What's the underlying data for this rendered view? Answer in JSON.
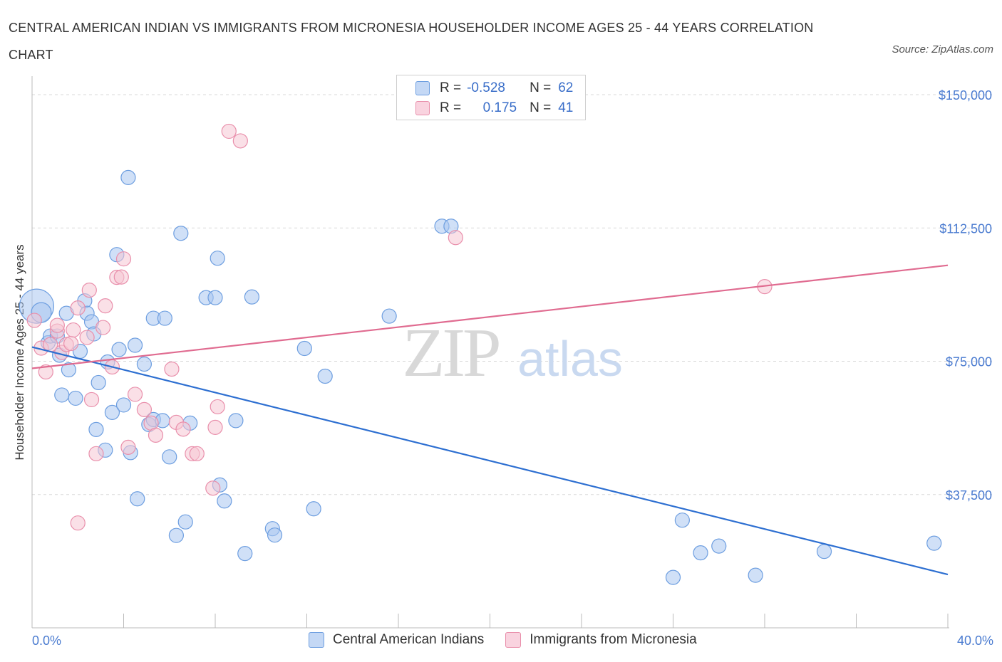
{
  "title": "CENTRAL AMERICAN INDIAN VS IMMIGRANTS FROM MICRONESIA HOUSEHOLDER INCOME AGES 25 - 44 YEARS CORRELATION CHART",
  "source": "Source: ZipAtlas.com",
  "watermark": {
    "zip": "ZIP",
    "atlas": "atlas"
  },
  "legend": {
    "rows": [
      {
        "r_label": "R =",
        "r_value": "-0.528",
        "n_label": "N =",
        "n_value": "62",
        "color": "#a9c6f0"
      },
      {
        "r_label": "R =",
        "r_value": "0.175",
        "n_label": "N =",
        "n_value": "41",
        "color": "#f5b8cb"
      }
    ]
  },
  "x_axis": {
    "min_label": "0.0%",
    "max_label": "40.0%"
  },
  "bottom_legend": [
    {
      "label": "Central American Indians",
      "color": "#a9c6f0",
      "border": "#6d9ee0"
    },
    {
      "label": "Immigrants from Micronesia",
      "color": "#f5c6d4",
      "border": "#e98fab"
    }
  ],
  "chart_data": {
    "type": "scatter",
    "ylabel": "Householder Income Ages 25 - 44 years",
    "xlim": [
      0,
      40
    ],
    "ylim": [
      0,
      150000
    ],
    "y_ticks": [
      {
        "value": 150000,
        "label": "$150,000"
      },
      {
        "value": 112500,
        "label": "$112,500"
      },
      {
        "value": 75000,
        "label": "$75,000"
      },
      {
        "value": 37500,
        "label": "$37,500"
      }
    ],
    "grid": true,
    "series": [
      {
        "name": "Central American Indians",
        "color": "#6d9ee0",
        "fill": "#a9c6f0",
        "trend": {
          "x": [
            0,
            40
          ],
          "y": [
            79000,
            15000
          ],
          "color": "#2d6fd1"
        },
        "points": [
          [
            0.2,
            90500,
            24
          ],
          [
            0.4,
            88700,
            14
          ],
          [
            0.7,
            80200,
            10
          ],
          [
            0.8,
            82100,
            10
          ],
          [
            1.1,
            82100,
            10
          ],
          [
            1.2,
            76700,
            10
          ],
          [
            1.3,
            65500,
            10
          ],
          [
            1.5,
            88500,
            10
          ],
          [
            1.6,
            72600,
            10
          ],
          [
            1.9,
            64600,
            10
          ],
          [
            2.1,
            77800,
            10
          ],
          [
            2.3,
            92000,
            10
          ],
          [
            2.4,
            88500,
            10
          ],
          [
            2.6,
            86100,
            10
          ],
          [
            2.7,
            82700,
            10
          ],
          [
            2.8,
            55800,
            10
          ],
          [
            2.9,
            69000,
            10
          ],
          [
            3.2,
            50000,
            10
          ],
          [
            3.3,
            74800,
            10
          ],
          [
            3.5,
            60600,
            10
          ],
          [
            3.7,
            105000,
            10
          ],
          [
            3.8,
            78300,
            10
          ],
          [
            4.0,
            62700,
            10
          ],
          [
            4.2,
            126700,
            10
          ],
          [
            4.3,
            49300,
            10
          ],
          [
            4.5,
            79500,
            10
          ],
          [
            4.6,
            36300,
            10
          ],
          [
            4.9,
            74200,
            10
          ],
          [
            5.1,
            57200,
            10
          ],
          [
            5.3,
            58600,
            10
          ],
          [
            5.3,
            87100,
            10
          ],
          [
            5.7,
            58300,
            10
          ],
          [
            5.8,
            87100,
            10
          ],
          [
            6.0,
            48100,
            10
          ],
          [
            6.3,
            26000,
            10
          ],
          [
            6.5,
            111000,
            10
          ],
          [
            6.7,
            29800,
            10
          ],
          [
            6.9,
            57600,
            10
          ],
          [
            7.6,
            92900,
            10
          ],
          [
            8.0,
            92900,
            10
          ],
          [
            8.1,
            104000,
            10
          ],
          [
            8.2,
            40200,
            10
          ],
          [
            8.4,
            35700,
            10
          ],
          [
            8.9,
            58300,
            10
          ],
          [
            9.3,
            20900,
            10
          ],
          [
            9.6,
            93100,
            10
          ],
          [
            10.5,
            27900,
            10
          ],
          [
            10.6,
            26100,
            10
          ],
          [
            11.9,
            78600,
            10
          ],
          [
            12.3,
            33500,
            10
          ],
          [
            12.8,
            70800,
            10
          ],
          [
            15.6,
            87700,
            10
          ],
          [
            17.9,
            113000,
            10
          ],
          [
            18.3,
            113000,
            10
          ],
          [
            28.0,
            14200,
            10
          ],
          [
            28.4,
            30300,
            10
          ],
          [
            29.2,
            21100,
            10
          ],
          [
            30.0,
            23000,
            10
          ],
          [
            31.6,
            14800,
            10
          ],
          [
            34.6,
            21500,
            10
          ],
          [
            39.4,
            23800,
            10
          ]
        ]
      },
      {
        "name": "Immigrants from Micronesia",
        "color": "#e98fab",
        "fill": "#f5c6d4",
        "trend": {
          "x": [
            0,
            40
          ],
          "y": [
            73000,
            102000
          ],
          "color": "#e06b90"
        },
        "points": [
          [
            0.1,
            86500,
            10
          ],
          [
            0.4,
            78700,
            10
          ],
          [
            0.6,
            72000,
            10
          ],
          [
            0.8,
            79700,
            10
          ],
          [
            1.1,
            83500,
            10
          ],
          [
            1.1,
            85100,
            10
          ],
          [
            1.3,
            77500,
            10
          ],
          [
            1.5,
            79700,
            10
          ],
          [
            1.7,
            80000,
            10
          ],
          [
            1.8,
            83800,
            10
          ],
          [
            2.0,
            90000,
            10
          ],
          [
            2.0,
            29500,
            10
          ],
          [
            2.4,
            81700,
            10
          ],
          [
            2.5,
            95000,
            10
          ],
          [
            2.6,
            64200,
            10
          ],
          [
            2.8,
            49000,
            10
          ],
          [
            3.1,
            84500,
            10
          ],
          [
            3.2,
            90600,
            10
          ],
          [
            3.5,
            73400,
            10
          ],
          [
            3.7,
            98600,
            10
          ],
          [
            3.9,
            98700,
            10
          ],
          [
            4.0,
            103800,
            10
          ],
          [
            4.2,
            50800,
            10
          ],
          [
            4.5,
            65700,
            10
          ],
          [
            4.9,
            61400,
            10
          ],
          [
            5.2,
            57600,
            10
          ],
          [
            5.4,
            54200,
            10
          ],
          [
            6.1,
            72800,
            10
          ],
          [
            6.3,
            57800,
            10
          ],
          [
            6.6,
            55900,
            10
          ],
          [
            7.0,
            49000,
            10
          ],
          [
            7.2,
            49000,
            10
          ],
          [
            7.9,
            39300,
            10
          ],
          [
            8.0,
            56400,
            10
          ],
          [
            8.1,
            62200,
            10
          ],
          [
            8.6,
            139700,
            10
          ],
          [
            9.1,
            137000,
            10
          ],
          [
            18.5,
            109800,
            10
          ],
          [
            32.0,
            96000,
            10
          ]
        ]
      }
    ]
  }
}
